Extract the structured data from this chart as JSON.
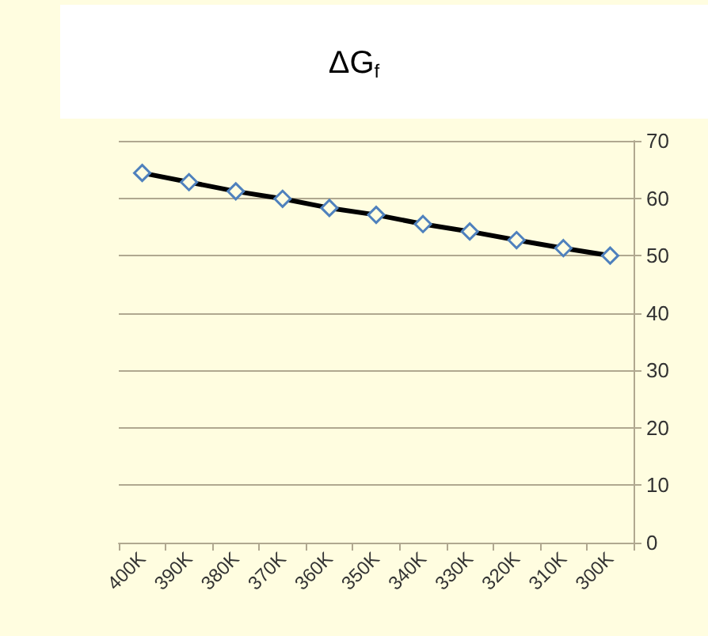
{
  "chart_data": {
    "type": "line",
    "title": "ΔG$_{f}$",
    "categories": [
      "400K",
      "390K",
      "380K",
      "370K",
      "360K",
      "350K",
      "340K",
      "330K",
      "320K",
      "310K",
      "300K"
    ],
    "series": [
      {
        "color": "#000000",
        "values": [
          64.4,
          62.8,
          61.2,
          59.9,
          58.3,
          57.1,
          55.5,
          54.2,
          52.7,
          51.3,
          50.0
        ]
      }
    ],
    "ylim": [
      0,
      70
    ],
    "yticks": [
      0,
      10,
      20,
      30,
      40,
      50,
      60,
      70
    ],
    "grid": "y",
    "marker": "diamond",
    "line_style": "solid"
  }
}
